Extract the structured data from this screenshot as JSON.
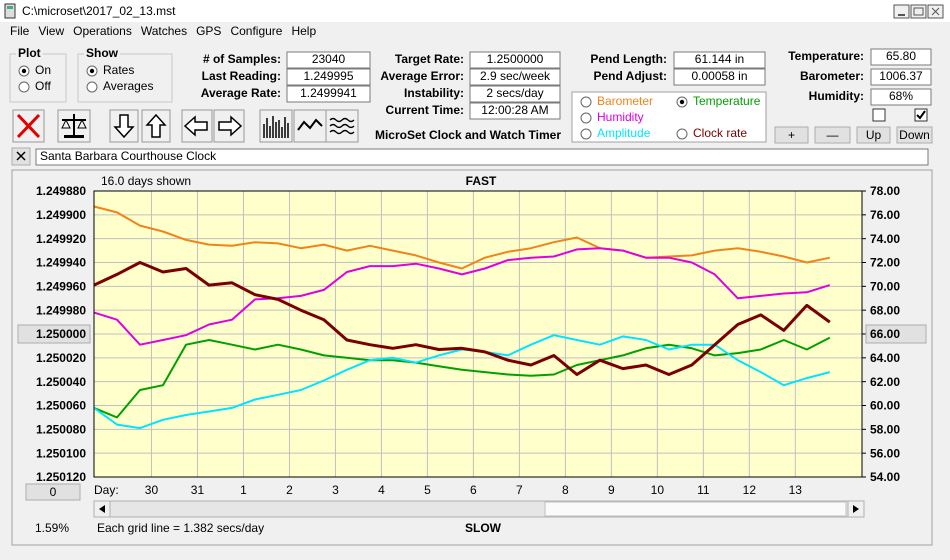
{
  "window": {
    "title": "C:\\microset\\2017_02_13.mst"
  },
  "menu": [
    "File",
    "View",
    "Operations",
    "Watches",
    "GPS",
    "Configure",
    "Help"
  ],
  "plot": {
    "title": "Plot",
    "options": [
      {
        "label": "On",
        "checked": true
      },
      {
        "label": "Off",
        "checked": false
      }
    ]
  },
  "show": {
    "title": "Show",
    "options": [
      {
        "label": "Rates",
        "checked": true
      },
      {
        "label": "Averages",
        "checked": false
      }
    ]
  },
  "stats": [
    {
      "label": "# of Samples:",
      "value": "23040"
    },
    {
      "label": "Last Reading:",
      "value": "1.249995"
    },
    {
      "label": "Average Rate:",
      "value": "1.2499941"
    }
  ],
  "timing": [
    {
      "label": "Target Rate:",
      "value": "1.2500000"
    },
    {
      "label": "Average Error:",
      "value": "2.9 sec/week"
    },
    {
      "label": "Instability:",
      "value": "2 secs/day"
    },
    {
      "label": "Current Time:",
      "value": "12:00:28 AM"
    }
  ],
  "app_name": "MicroSet Clock and Watch Timer",
  "pendulum": [
    {
      "label": "Pend Length:",
      "value": "61.144 in"
    },
    {
      "label": "Pend Adjust:",
      "value": "0.00058 in"
    }
  ],
  "sensors": [
    {
      "label": "Temperature:",
      "value": "65.80"
    },
    {
      "label": "Barometer:",
      "value": "1006.37"
    },
    {
      "label": "Humidity:",
      "value": "68%"
    }
  ],
  "checkboxes": [
    false,
    true
  ],
  "buttons": [
    "+",
    "—",
    "Up",
    "Down"
  ],
  "clock_name": "Santa Barbara Courthouse Clock",
  "chart_data": {
    "type": "line",
    "days_shown": "16.0 days shown",
    "top_label": "FAST",
    "bottom_label": "SLOW",
    "note": "Each grid line = 1.382 secs/day",
    "xlabel": "Day:",
    "status": "1.59%",
    "offset_button": "0",
    "background": "#ffffcc",
    "grid": true,
    "yreverse": true,
    "xlim": [
      0,
      16.7
    ],
    "xticks": [
      {
        "value": 1.25,
        "label": "30"
      },
      {
        "value": 2.25,
        "label": "31"
      },
      {
        "value": 3.25,
        "label": "1"
      },
      {
        "value": 4.25,
        "label": "2"
      },
      {
        "value": 5.25,
        "label": "3"
      },
      {
        "value": 6.25,
        "label": "4"
      },
      {
        "value": 7.25,
        "label": "5"
      },
      {
        "value": 8.25,
        "label": "6"
      },
      {
        "value": 9.25,
        "label": "7"
      },
      {
        "value": 10.25,
        "label": "8"
      },
      {
        "value": 11.25,
        "label": "9"
      },
      {
        "value": 12.25,
        "label": "10"
      },
      {
        "value": 13.25,
        "label": "11"
      },
      {
        "value": 14.25,
        "label": "12"
      },
      {
        "value": 15.25,
        "label": "13"
      }
    ],
    "ylim": [
      1.24988,
      1.25012
    ],
    "yticks": [
      {
        "value": 1.24988,
        "label": "1.249880"
      },
      {
        "value": 1.2499,
        "label": "1.249900"
      },
      {
        "value": 1.24992,
        "label": "1.249920"
      },
      {
        "value": 1.24994,
        "label": "1.249940"
      },
      {
        "value": 1.24996,
        "label": "1.249960"
      },
      {
        "value": 1.24998,
        "label": "1.249980"
      },
      {
        "value": 1.25,
        "label": "1.250000"
      },
      {
        "value": 1.25002,
        "label": "1.250020"
      },
      {
        "value": 1.25004,
        "label": "1.250040"
      },
      {
        "value": 1.25006,
        "label": "1.250060"
      },
      {
        "value": 1.25008,
        "label": "1.250080"
      },
      {
        "value": 1.2501,
        "label": "1.250100"
      },
      {
        "value": 1.25012,
        "label": "1.250120"
      }
    ],
    "y2lim": [
      54,
      78
    ],
    "y2ticks": [
      {
        "value": 54,
        "label": "54.00"
      },
      {
        "value": 56,
        "label": "56.00"
      },
      {
        "value": 58,
        "label": "58.00"
      },
      {
        "value": 60,
        "label": "60.00"
      },
      {
        "value": 62,
        "label": "62.00"
      },
      {
        "value": 64,
        "label": "64.00"
      },
      {
        "value": 66,
        "label": "66.00"
      },
      {
        "value": 68,
        "label": "68.00"
      },
      {
        "value": 70,
        "label": "70.00"
      },
      {
        "value": 72,
        "label": "72.00"
      },
      {
        "value": 74,
        "label": "74.00"
      },
      {
        "value": 76,
        "label": "76.00"
      },
      {
        "value": 78,
        "label": "78.00"
      }
    ],
    "x": [
      0,
      0.5,
      1,
      1.5,
      2,
      2.5,
      3,
      3.5,
      4,
      4.5,
      5,
      5.5,
      6,
      6.5,
      7,
      7.5,
      8,
      8.5,
      9,
      9.5,
      10,
      10.5,
      11,
      11.5,
      12,
      12.5,
      13,
      13.5,
      14,
      14.5,
      15,
      15.5,
      16
    ],
    "series": [
      {
        "name": "Barometer",
        "color": "#f0841a",
        "axis": "y2",
        "selected": false,
        "values": [
          76.7,
          76.2,
          75.1,
          74.6,
          73.9,
          73.5,
          73.4,
          73.7,
          73.6,
          73.2,
          73.5,
          73.0,
          73.4,
          73.0,
          72.6,
          72.0,
          71.5,
          72.4,
          72.9,
          73.2,
          73.7,
          74.1,
          73.2,
          73.0,
          72.4,
          72.5,
          72.6,
          73.0,
          73.2,
          72.9,
          72.5,
          72.0,
          72.4
        ]
      },
      {
        "name": "Temperature",
        "color": "#00a000",
        "axis": "y2",
        "selected": true,
        "values": [
          59.8,
          59.0,
          61.3,
          61.7,
          65.1,
          65.5,
          65.1,
          64.7,
          65.1,
          64.7,
          64.2,
          64.0,
          63.8,
          63.8,
          63.6,
          63.3,
          63.0,
          62.8,
          62.6,
          62.5,
          62.6,
          63.4,
          63.8,
          64.2,
          64.8,
          65.1,
          64.8,
          64.2,
          64.4,
          64.7,
          65.5,
          64.7,
          65.7
        ]
      },
      {
        "name": "Humidity",
        "color": "#e000e0",
        "axis": "y2",
        "selected": false,
        "values": [
          67.8,
          67.2,
          65.1,
          65.5,
          65.9,
          66.8,
          67.2,
          68.9,
          69.0,
          69.2,
          69.7,
          71.2,
          71.7,
          71.7,
          71.9,
          71.5,
          71.0,
          71.5,
          72.2,
          72.4,
          72.5,
          73.1,
          73.2,
          73.0,
          72.4,
          72.4,
          72.0,
          71.0,
          69.0,
          69.2,
          69.4,
          69.5,
          70.1
        ]
      },
      {
        "name": "Amplitude",
        "color": "#00e4ff",
        "axis": "y2",
        "selected": false,
        "values": [
          59.8,
          58.4,
          58.1,
          58.8,
          59.2,
          59.5,
          59.8,
          60.5,
          60.9,
          61.3,
          62.1,
          63.0,
          63.8,
          64.0,
          63.6,
          64.2,
          64.7,
          64.5,
          64.2,
          65.1,
          65.9,
          65.5,
          65.1,
          65.8,
          65.5,
          64.7,
          65.1,
          65.1,
          63.8,
          62.8,
          61.7,
          62.3,
          62.8
        ]
      },
      {
        "name": "Clock rate",
        "color": "#7a0000",
        "axis": "y",
        "selected": false,
        "values": [
          1.249959,
          1.24995,
          1.24994,
          1.249948,
          1.249945,
          1.249959,
          1.249957,
          1.249967,
          1.249971,
          1.24998,
          1.249988,
          1.250005,
          1.250009,
          1.250012,
          1.250009,
          1.250013,
          1.250012,
          1.250015,
          1.250022,
          1.250026,
          1.250018,
          1.250034,
          1.250022,
          1.250029,
          1.250026,
          1.250034,
          1.250026,
          1.250009,
          1.249992,
          1.249984,
          1.249997,
          1.249976,
          1.24999
        ]
      }
    ]
  }
}
